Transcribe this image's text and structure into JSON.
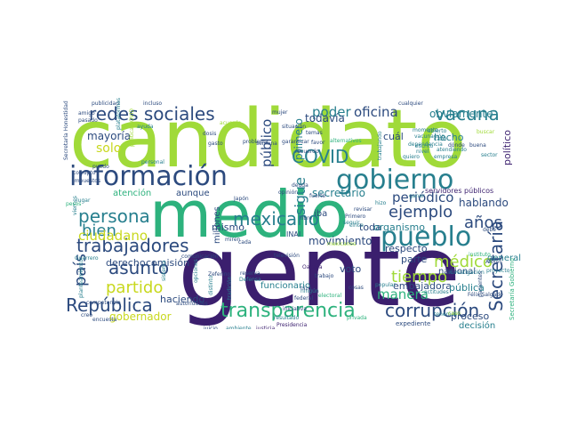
{
  "palette": {
    "purple": "#3b1f6e",
    "navy": "#2c4a7e",
    "blue": "#365c8d",
    "teal": "#277f8e",
    "green": "#2db27d",
    "lime": "#a0da39",
    "yellow": "#c8d81e"
  },
  "words": [
    {
      "text": "candidato",
      "color": "lime"
    },
    {
      "text": "gente",
      "color": "purple"
    },
    {
      "text": "medio",
      "color": "green"
    },
    {
      "text": "información",
      "color": "navy"
    },
    {
      "text": "gobierno",
      "color": "teal"
    },
    {
      "text": "pueblo",
      "color": "teal"
    },
    {
      "text": "transparencia",
      "color": "green"
    },
    {
      "text": "redes sociales",
      "color": "navy"
    },
    {
      "text": "trabajadores",
      "color": "navy"
    },
    {
      "text": "vacuna",
      "color": "teal"
    },
    {
      "text": "persona",
      "color": "teal"
    },
    {
      "text": "República",
      "color": "navy"
    },
    {
      "text": "corrupción",
      "color": "navy"
    },
    {
      "text": "Secretaría",
      "color": "navy"
    },
    {
      "text": "COVID",
      "color": "teal"
    },
    {
      "text": "asunto",
      "color": "navy"
    },
    {
      "text": "mexicano",
      "color": "teal"
    },
    {
      "text": "tiempo",
      "color": "lime"
    },
    {
      "text": "médico",
      "color": "lime"
    },
    {
      "text": "partido",
      "color": "yellow"
    },
    {
      "text": "ejemplo",
      "color": "navy"
    },
    {
      "text": "años",
      "color": "navy"
    },
    {
      "text": "país",
      "color": "navy"
    },
    {
      "text": "bien",
      "color": "teal"
    },
    {
      "text": "oficina",
      "color": "navy"
    },
    {
      "text": "poder",
      "color": "teal"
    },
    {
      "text": "periódico",
      "color": "navy"
    },
    {
      "text": "manera",
      "color": "green"
    },
    {
      "text": "ciudadano",
      "color": "yellow"
    },
    {
      "text": "público",
      "color": "navy"
    },
    {
      "text": "sigue",
      "color": "teal"
    },
    {
      "text": "solo",
      "color": "yellow"
    },
    {
      "text": "mayoría",
      "color": "navy"
    },
    {
      "text": "movimiento",
      "color": "navy"
    },
    {
      "text": "obviamente",
      "color": "teal"
    },
    {
      "text": "todavía",
      "color": "navy"
    },
    {
      "text": "gobernador",
      "color": "yellow"
    },
    {
      "text": "embajadora",
      "color": "navy"
    },
    {
      "text": "primero",
      "color": "teal"
    },
    {
      "text": "secretario",
      "color": "teal"
    },
    {
      "text": "hablando",
      "color": "navy"
    },
    {
      "text": "hecho",
      "color": "teal"
    },
    {
      "text": "cuál",
      "color": "navy"
    },
    {
      "text": "político",
      "color": "purple"
    },
    {
      "text": "toda",
      "color": "navy"
    },
    {
      "text": "proceso",
      "color": "navy"
    },
    {
      "text": "respecto",
      "color": "navy"
    },
    {
      "text": "pública",
      "color": "teal"
    },
    {
      "text": "organismo",
      "color": "teal"
    },
    {
      "text": "voto",
      "color": "navy"
    },
    {
      "text": "parte",
      "color": "navy"
    },
    {
      "text": "derecho",
      "color": "navy"
    },
    {
      "text": "comisión",
      "color": "navy"
    },
    {
      "text": "haciendo",
      "color": "navy"
    },
    {
      "text": "mismo",
      "color": "navy"
    },
    {
      "text": "aunque",
      "color": "navy"
    },
    {
      "text": "atención",
      "color": "green"
    },
    {
      "text": "nacional",
      "color": "navy"
    },
    {
      "text": "general",
      "color": "teal"
    },
    {
      "text": "decisión",
      "color": "teal"
    },
    {
      "text": "iba",
      "color": "navy"
    },
    {
      "text": "millones",
      "color": "navy"
    },
    {
      "text": "funcionario",
      "color": "teal"
    },
    {
      "text": "servidores públicos",
      "color": "purple"
    },
    {
      "text": "INAI",
      "color": "navy"
    },
    {
      "text": "expediente",
      "color": "navy"
    },
    {
      "text": "investigación",
      "color": "teal"
    },
    {
      "text": "instituto",
      "color": "green"
    },
    {
      "text": "Félix Salgado",
      "color": "navy"
    },
    {
      "text": "Oaxaca",
      "color": "purple"
    },
    {
      "text": "Presidencia",
      "color": "purple"
    },
    {
      "text": "competencia",
      "color": "navy"
    },
    {
      "text": "problema",
      "color": "navy"
    },
    {
      "text": "publicidad",
      "color": "navy"
    },
    {
      "text": "incluso",
      "color": "navy"
    },
    {
      "text": "cualquier",
      "color": "navy"
    },
    {
      "text": "vacunación",
      "color": "teal"
    },
    {
      "text": "situación",
      "color": "navy"
    },
    {
      "text": "alternativos",
      "color": "green"
    },
    {
      "text": "garantizar",
      "color": "navy"
    },
    {
      "text": "autoridades",
      "color": "navy"
    },
    {
      "text": "dependencia",
      "color": "teal"
    },
    {
      "text": "trabajo",
      "color": "navy"
    },
    {
      "text": "fuerte",
      "color": "navy"
    },
    {
      "text": "libre",
      "color": "navy"
    },
    {
      "text": "revisar",
      "color": "navy"
    },
    {
      "text": "Japón",
      "color": "navy"
    },
    {
      "text": "Zeferino",
      "color": "navy"
    },
    {
      "text": "Defensa",
      "color": "teal"
    },
    {
      "text": "Guerrero",
      "color": "teal"
    },
    {
      "text": "Afores",
      "color": "navy"
    },
    {
      "text": "proyecto",
      "color": "teal"
    },
    {
      "text": "debe",
      "color": "navy"
    },
    {
      "text": "reserva",
      "color": "navy"
    },
    {
      "text": "ambiente",
      "color": "teal"
    },
    {
      "text": "juicio",
      "color": "navy"
    },
    {
      "text": "justicia",
      "color": "purple"
    },
    {
      "text": "federal",
      "color": "navy"
    },
    {
      "text": "cosas",
      "color": "navy"
    },
    {
      "text": "popular",
      "color": "teal"
    },
    {
      "text": "iniciativa",
      "color": "navy"
    },
    {
      "text": "electoral",
      "color": "green"
    },
    {
      "text": "dosis",
      "color": "navy"
    },
    {
      "text": "temas",
      "color": "navy"
    },
    {
      "text": "favor",
      "color": "navy"
    },
    {
      "text": "semana",
      "color": "navy"
    },
    {
      "text": "gasto",
      "color": "navy"
    },
    {
      "text": "puedo",
      "color": "navy"
    },
    {
      "text": "personal",
      "color": "teal"
    },
    {
      "text": "corrupto",
      "color": "navy"
    },
    {
      "text": "impuestos",
      "color": "navy"
    },
    {
      "text": "nivel",
      "color": "teal"
    },
    {
      "text": "cabo",
      "color": "teal"
    },
    {
      "text": "quiero",
      "color": "teal"
    },
    {
      "text": "sector",
      "color": "teal"
    },
    {
      "text": "creo",
      "color": "navy"
    },
    {
      "text": "mujer",
      "color": "navy"
    },
    {
      "text": "momento",
      "color": "teal"
    },
    {
      "text": "ningún",
      "color": "teal"
    },
    {
      "text": "amigo",
      "color": "navy"
    },
    {
      "text": "acuerdo",
      "color": "lime"
    },
    {
      "text": "cada",
      "color": "navy"
    },
    {
      "text": "mexicanos",
      "color": "lime"
    },
    {
      "text": "cinco",
      "color": "teal"
    },
    {
      "text": "opinión",
      "color": "navy"
    },
    {
      "text": "empresa",
      "color": "teal"
    },
    {
      "text": "encuesta",
      "color": "navy"
    },
    {
      "text": "buena",
      "color": "navy"
    },
    {
      "text": "Primero",
      "color": "navy"
    },
    {
      "text": "hizo",
      "color": "teal"
    },
    {
      "text": "seguir",
      "color": "teal"
    },
    {
      "text": "miren",
      "color": "navy"
    },
    {
      "text": "ganar",
      "color": "teal"
    },
    {
      "text": "actitudes",
      "color": "teal"
    },
    {
      "text": "deuda",
      "color": "navy"
    },
    {
      "text": "hizo",
      "color": "navy"
    },
    {
      "text": "recuerdo",
      "color": "navy"
    },
    {
      "text": "televisión",
      "color": "navy"
    },
    {
      "text": "comunicación",
      "color": "navy"
    },
    {
      "text": "opciones",
      "color": "teal"
    },
    {
      "text": "distinto",
      "color": "teal"
    },
    {
      "text": "tradición",
      "color": "teal"
    },
    {
      "text": "privada",
      "color": "green"
    },
    {
      "text": "resultado",
      "color": "teal"
    },
    {
      "text": "tenemos",
      "color": "teal"
    },
    {
      "text": "dónde",
      "color": "navy"
    },
    {
      "text": "pasado",
      "color": "navy"
    },
    {
      "text": "buscar",
      "color": "lime"
    },
    {
      "text": "trabajando",
      "color": "teal"
    },
    {
      "text": "atendiendo",
      "color": "teal"
    },
    {
      "text": "pacientes",
      "color": "navy"
    },
    {
      "text": "planteamiento",
      "color": "teal"
    },
    {
      "text": "viernes",
      "color": "teal"
    },
    {
      "text": "sistema",
      "color": "teal"
    },
    {
      "text": "ayuda",
      "color": "teal"
    },
    {
      "text": "plataformas",
      "color": "teal"
    },
    {
      "text": "lugar",
      "color": "teal"
    },
    {
      "text": "pesos",
      "color": "green"
    },
    {
      "text": "caso",
      "color": "lime"
    },
    {
      "text": "escrito",
      "color": "teal"
    },
    {
      "text": "abierto",
      "color": "teal"
    },
    {
      "text": "Secretaría Honestidad",
      "color": "navy"
    },
    {
      "text": "Secretaría Gobierno",
      "color": "green"
    },
    {
      "text": "política COVID",
      "color": "lime"
    }
  ]
}
